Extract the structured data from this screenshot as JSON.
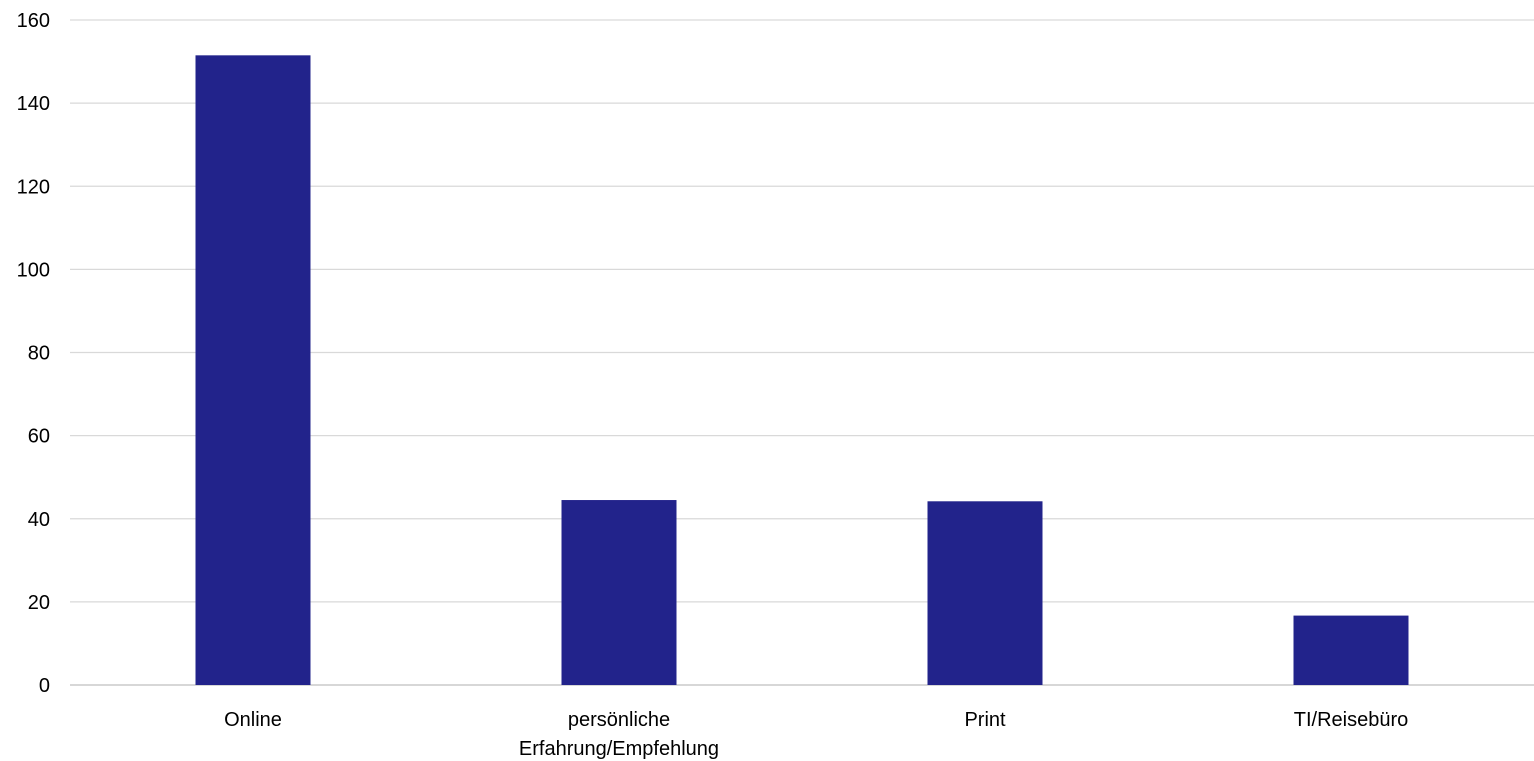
{
  "chart_data": {
    "type": "bar",
    "title": "",
    "xlabel": "",
    "ylabel": "",
    "categories": [
      [
        "Online"
      ],
      [
        "persönliche",
        "Erfahrung/Empfehlung"
      ],
      [
        "Print"
      ],
      [
        "TI/Reisebüro"
      ]
    ],
    "values": [
      151.5,
      44.5,
      44.2,
      16.7
    ],
    "ylim": [
      0,
      160
    ],
    "yticks": [
      0,
      20,
      40,
      60,
      80,
      100,
      120,
      140,
      160
    ],
    "grid": true,
    "legend": "none",
    "colors": {
      "bar": "#22238b",
      "grid": "#d9d9d9",
      "axis": "#bfbfbf"
    }
  }
}
